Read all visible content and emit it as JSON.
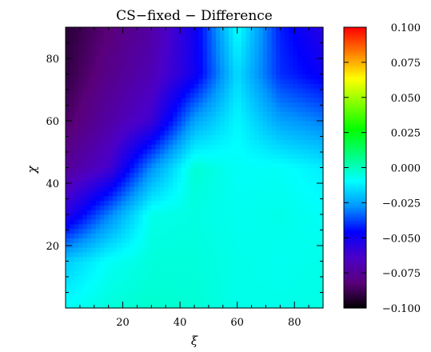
{
  "chart_data": {
    "type": "heatmap",
    "title": "CS−fixed  −  Difference",
    "xlabel": "ξ",
    "ylabel": "χ",
    "xlim": [
      0,
      90
    ],
    "ylim": [
      0,
      90
    ],
    "x_ticks": [
      20,
      40,
      60,
      80
    ],
    "y_ticks": [
      20,
      40,
      60,
      80
    ],
    "colorbar": {
      "range": [
        -0.1,
        0.1
      ],
      "ticks": [
        0.1,
        0.075,
        0.05,
        0.025,
        0.0,
        -0.025,
        -0.05,
        -0.075,
        -0.1
      ],
      "tick_labels": [
        "0.100",
        "0.075",
        "0.050",
        "0.025",
        "0.000",
        "−0.025",
        "−0.050",
        "−0.075",
        "−0.100"
      ],
      "colormap": [
        "#000000",
        "#5a007a",
        "#4b00c8",
        "#0000ff",
        "#0096ff",
        "#00ffff",
        "#00ff80",
        "#00ff00",
        "#80ff00",
        "#ffff00",
        "#ff8000",
        "#ff0000"
      ]
    },
    "grid_samples": {
      "x": [
        0,
        15,
        30,
        45,
        60,
        75,
        90
      ],
      "y": [
        0,
        15,
        30,
        45,
        60,
        75,
        90
      ],
      "z": [
        [
          -0.008,
          -0.004,
          -0.002,
          -0.003,
          -0.006,
          -0.006,
          -0.005
        ],
        [
          -0.018,
          -0.008,
          -0.004,
          -0.004,
          -0.006,
          -0.007,
          -0.006
        ],
        [
          -0.055,
          -0.03,
          -0.006,
          -0.005,
          -0.007,
          -0.006,
          -0.008
        ],
        [
          -0.075,
          -0.062,
          -0.028,
          -0.003,
          -0.008,
          -0.008,
          -0.012
        ],
        [
          -0.085,
          -0.072,
          -0.06,
          -0.025,
          -0.01,
          -0.025,
          -0.03
        ],
        [
          -0.09,
          -0.078,
          -0.068,
          -0.05,
          -0.015,
          -0.04,
          -0.048
        ],
        [
          -0.092,
          -0.082,
          -0.072,
          -0.05,
          -0.008,
          -0.042,
          -0.055
        ]
      ]
    }
  }
}
